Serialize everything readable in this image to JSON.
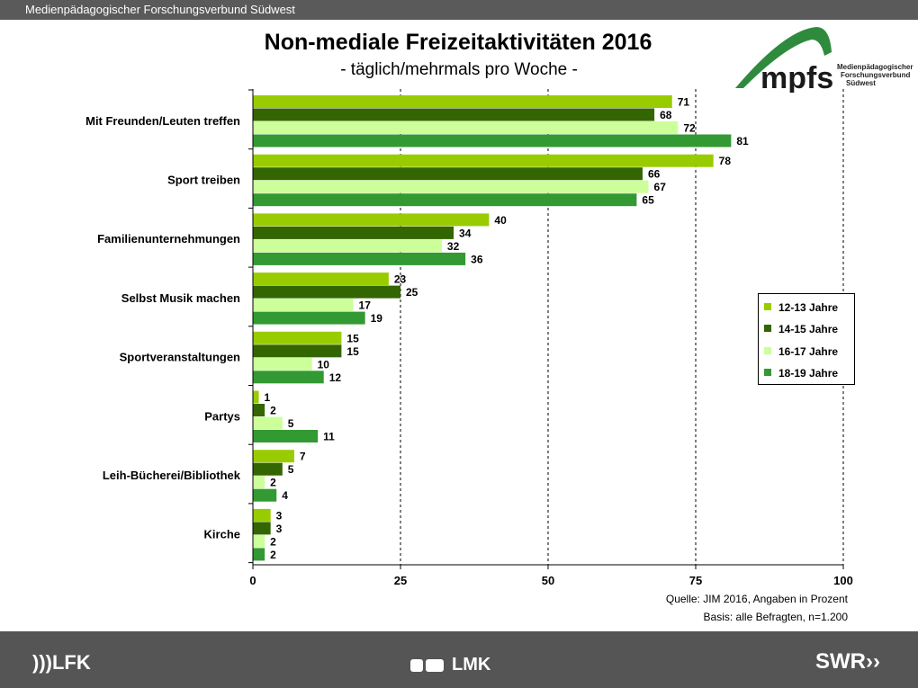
{
  "header": {
    "org_label": "Medienpädagogischer Forschungsverbund Südwest"
  },
  "logo": {
    "name": "mpfs",
    "tagline_lines": [
      "Medienpädagogischer",
      "Forschungsverbund",
      "Südwest"
    ],
    "colors": {
      "arc": "#2e8b3e",
      "text": "#1a1a1a"
    }
  },
  "chart_data": {
    "type": "bar",
    "orientation": "horizontal",
    "title": "Non-mediale Freizeitaktivitäten 2016",
    "subtitle": "- täglich/mehrmals pro Woche -",
    "categories": [
      "Mit Freunden/Leuten  treffen",
      "Sport treiben",
      "Familienunternehmungen",
      "Selbst Musik machen",
      "Sportveranstaltungen",
      "Partys",
      "Leih-Bücherei/Bibliothek",
      "Kirche"
    ],
    "series": [
      {
        "name": "12-13  Jahre",
        "color": "#99cc00",
        "values": [
          71,
          78,
          40,
          23,
          15,
          1,
          7,
          3
        ]
      },
      {
        "name": "14-15  Jahre",
        "color": "#336600",
        "values": [
          68,
          66,
          34,
          25,
          15,
          2,
          5,
          3
        ]
      },
      {
        "name": "16-17  Jahre",
        "color": "#ccff99",
        "values": [
          72,
          67,
          32,
          17,
          10,
          5,
          2,
          2
        ]
      },
      {
        "name": "18-19  Jahre",
        "color": "#339933",
        "values": [
          81,
          65,
          36,
          19,
          12,
          11,
          4,
          2
        ]
      }
    ],
    "xlim": [
      0,
      100
    ],
    "xticks": [
      0,
      25,
      50,
      75,
      100
    ],
    "grid": "vertical dashed",
    "legend_position": "right",
    "data_labels": true
  },
  "footnotes": {
    "source": "Quelle: JIM 2016, Angaben in Prozent",
    "basis": "Basis: alle Befragten, n=1.200"
  },
  "footer": {
    "logo_left": "LFK",
    "logo_center": "LMK",
    "logo_right": "SWR"
  }
}
